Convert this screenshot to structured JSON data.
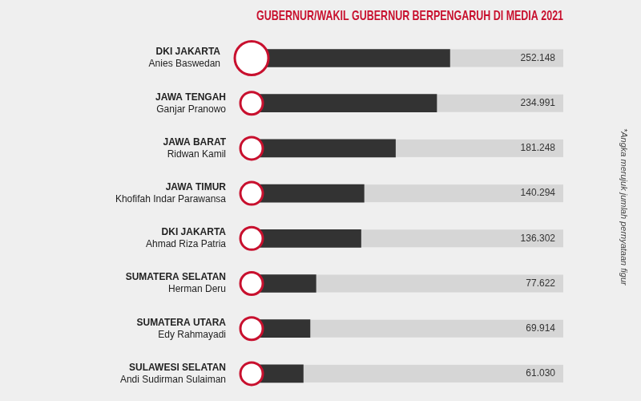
{
  "chart_data": {
    "type": "bar",
    "title": "GUBERNUR/WAKIL GUBERNUR BERPENGARUH DI MEDIA 2021",
    "note": "*Angka merujuk jumlah pernyataan figur",
    "orientation": "horizontal",
    "categories": [
      [
        "DKI JAKARTA",
        "Anies Baswedan"
      ],
      [
        "JAWA TENGAH",
        "Ganjar Pranowo"
      ],
      [
        "JAWA BARAT",
        "Ridwan Kamil"
      ],
      [
        "JAWA TIMUR",
        "Khofifah Indar Parawansa"
      ],
      [
        "DKI JAKARTA",
        "Ahmad Riza Patria"
      ],
      [
        "SUMATERA SELATAN",
        "Herman Deru"
      ],
      [
        "SUMATERA UTARA",
        "Edy Rahmayadi"
      ],
      [
        "SULAWESI SELATAN",
        "Andi Sudirman Sulaiman"
      ]
    ],
    "values": [
      252148,
      234991,
      181248,
      140294,
      136302,
      77622,
      69914,
      61030
    ],
    "value_labels": [
      "252.148",
      "234.991",
      "181.248",
      "140.294",
      "136.302",
      "77.622",
      "69.914",
      "61.030"
    ],
    "data_labels": true,
    "color": "#333333",
    "xlim": [
      0,
      400000
    ],
    "grid": false,
    "tick_labels": false
  }
}
